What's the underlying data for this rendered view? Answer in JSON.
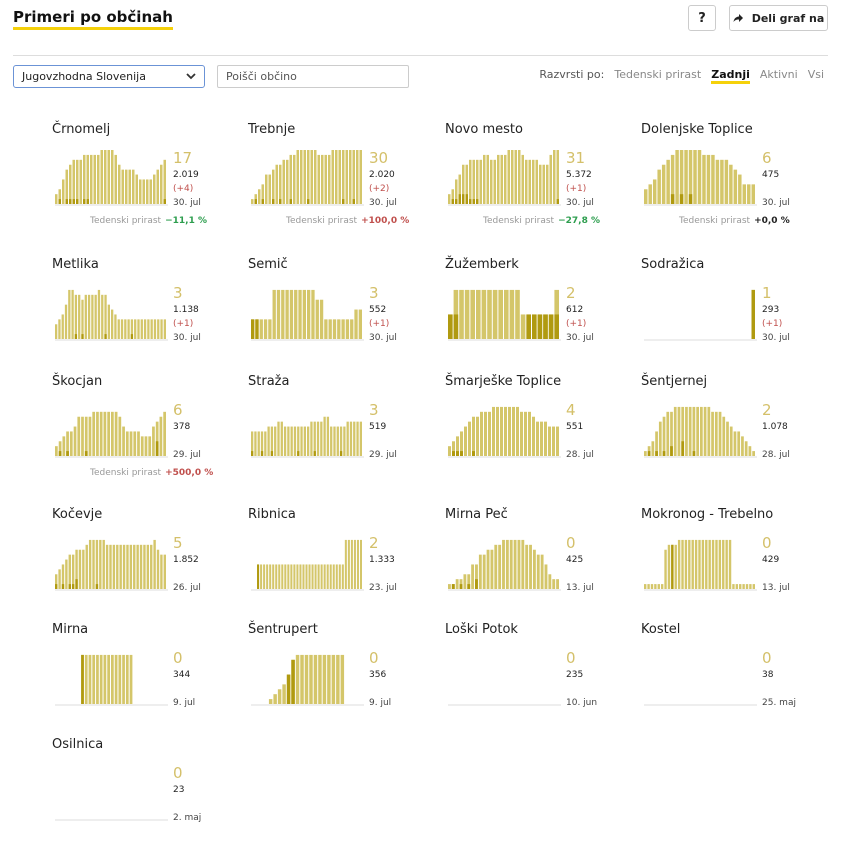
{
  "header": {
    "title": "Primeri po občinah",
    "help_label": "?",
    "share_label": "Deli graf na"
  },
  "filters": {
    "region": "Jugovzhodna Slovenija",
    "search_placeholder": "Poišči občino"
  },
  "sort": {
    "label": "Razvrsti po:",
    "options": [
      "Tedenski prirast",
      "Zadnji",
      "Aktivni",
      "Vsi"
    ],
    "active": "Zadnji"
  },
  "colors": {
    "accent": "#f5d10a",
    "bar": "#d4c66a",
    "bar_dark": "#b09a10",
    "positive": "#2e9e4f",
    "negative": "#c0504d"
  },
  "growth_label": "Tedenski prirast",
  "municipalities": [
    {
      "name": "Črnomelj",
      "total": "17",
      "population": "2.019",
      "change": "(+4)",
      "date": "30. jul",
      "growth": "−11,1 %",
      "growth_color": "green",
      "bars": [
        2,
        3,
        5,
        7,
        8,
        9,
        9,
        9,
        10,
        10,
        10,
        10,
        10,
        11,
        11,
        11,
        11,
        10,
        8,
        7,
        7,
        7,
        7,
        6,
        5,
        5,
        5,
        5,
        6,
        7,
        8,
        9
      ],
      "darks": [
        0,
        1,
        0,
        1,
        1,
        1,
        1,
        0,
        1,
        1,
        0,
        0,
        0,
        0,
        0,
        0,
        0,
        0,
        0,
        0,
        0,
        0,
        0,
        0,
        0,
        0,
        0,
        0,
        0,
        0,
        0,
        1
      ]
    },
    {
      "name": "Trebnje",
      "total": "30",
      "population": "2.020",
      "change": "(+2)",
      "date": "30. jul",
      "growth": "+100,0 %",
      "growth_color": "red",
      "bars": [
        1,
        2,
        3,
        4,
        6,
        6,
        7,
        8,
        8,
        9,
        9,
        10,
        10,
        11,
        11,
        11,
        11,
        11,
        11,
        10,
        10,
        10,
        10,
        11,
        11,
        11,
        11,
        11,
        11,
        11,
        11,
        11
      ],
      "darks": [
        0,
        1,
        0,
        1,
        0,
        0,
        1,
        0,
        1,
        0,
        0,
        1,
        0,
        0,
        0,
        0,
        1,
        0,
        0,
        0,
        0,
        0,
        0,
        0,
        0,
        0,
        1,
        0,
        0,
        1,
        0,
        0
      ]
    },
    {
      "name": "Novo mesto",
      "total": "31",
      "population": "5.372",
      "change": "(+1)",
      "date": "30. jul",
      "growth": "−27,8 %",
      "growth_color": "green",
      "bars": [
        2,
        3,
        5,
        6,
        8,
        8,
        9,
        9,
        9,
        9,
        10,
        10,
        9,
        9,
        10,
        10,
        10,
        11,
        11,
        11,
        11,
        10,
        9,
        9,
        9,
        9,
        8,
        8,
        8,
        10,
        11,
        11
      ],
      "darks": [
        0,
        1,
        1,
        2,
        2,
        2,
        1,
        1,
        1,
        0,
        0,
        0,
        0,
        0,
        0,
        0,
        0,
        0,
        0,
        0,
        0,
        0,
        0,
        0,
        0,
        0,
        0,
        0,
        0,
        0,
        0,
        1
      ]
    },
    {
      "name": "Dolenjske Toplice",
      "total": "6",
      "population": "475",
      "change": "",
      "date": "30. jul",
      "growth": "+0,0 %",
      "growth_color": "black",
      "bars": [
        3,
        4,
        5,
        7,
        8,
        9,
        10,
        11,
        11,
        11,
        11,
        11,
        11,
        10,
        10,
        10,
        9,
        9,
        9,
        8,
        7,
        6,
        4,
        4,
        4
      ],
      "darks": [
        0,
        0,
        0,
        0,
        0,
        0,
        2,
        0,
        2,
        0,
        2,
        0,
        0,
        0,
        0,
        0,
        0,
        0,
        0,
        0,
        0,
        0,
        0,
        0,
        0
      ]
    },
    {
      "name": "Metlika",
      "total": "3",
      "population": "1.138",
      "change": "(+1)",
      "date": "30. jul",
      "growth": "",
      "growth_color": "",
      "bars": [
        3,
        4,
        5,
        7,
        10,
        10,
        9,
        9,
        8,
        9,
        9,
        9,
        9,
        10,
        9,
        9,
        7,
        6,
        5,
        4,
        4,
        4,
        4,
        4,
        4,
        4,
        4,
        4,
        4,
        4,
        4,
        4,
        4,
        4
      ],
      "darks": [
        0,
        0,
        0,
        0,
        0,
        0,
        1,
        0,
        1,
        0,
        0,
        0,
        0,
        0,
        0,
        1,
        0,
        0,
        0,
        0,
        0,
        0,
        0,
        1,
        0,
        0,
        0,
        0,
        0,
        0,
        0,
        0,
        0,
        0
      ]
    },
    {
      "name": "Semič",
      "total": "3",
      "population": "552",
      "change": "(+1)",
      "date": "30. jul",
      "growth": "",
      "growth_color": "",
      "bars": [
        4,
        4,
        4,
        4,
        4,
        10,
        10,
        10,
        10,
        10,
        10,
        10,
        10,
        10,
        10,
        8,
        8,
        4,
        4,
        4,
        4,
        4,
        4,
        4,
        6,
        6
      ],
      "darks": [
        4,
        4,
        0,
        0,
        0,
        0,
        0,
        0,
        0,
        0,
        0,
        0,
        0,
        0,
        0,
        0,
        0,
        0,
        0,
        0,
        0,
        0,
        0,
        0,
        0,
        0
      ]
    },
    {
      "name": "Žužemberk",
      "total": "2",
      "population": "612",
      "change": "(+1)",
      "date": "30. jul",
      "growth": "",
      "growth_color": "",
      "bars": [
        5,
        10,
        10,
        10,
        10,
        10,
        10,
        10,
        10,
        10,
        10,
        10,
        10,
        5,
        5,
        5,
        5,
        5,
        5,
        10
      ],
      "darks": [
        5,
        5,
        0,
        0,
        0,
        0,
        0,
        0,
        0,
        0,
        0,
        0,
        0,
        0,
        5,
        5,
        5,
        5,
        5,
        5
      ]
    },
    {
      "name": "Sodražica",
      "total": "1",
      "population": "293",
      "change": "(+1)",
      "date": "30. jul",
      "growth": "",
      "growth_color": "",
      "bars": [
        0,
        0,
        0,
        0,
        0,
        0,
        0,
        0,
        0,
        0,
        0,
        0,
        0,
        0,
        0,
        0,
        0,
        0,
        0,
        0,
        0,
        0,
        0,
        0,
        10
      ],
      "darks": [
        0,
        0,
        0,
        0,
        0,
        0,
        0,
        0,
        0,
        0,
        0,
        0,
        0,
        0,
        0,
        0,
        0,
        0,
        0,
        0,
        0,
        0,
        0,
        0,
        10
      ]
    },
    {
      "name": "Škocjan",
      "total": "6",
      "population": "378",
      "change": "",
      "date": "29. jul",
      "growth": "+500,0 %",
      "growth_color": "red",
      "bars": [
        2,
        3,
        4,
        5,
        5,
        6,
        8,
        8,
        8,
        8,
        9,
        9,
        9,
        9,
        9,
        9,
        9,
        8,
        6,
        5,
        5,
        5,
        5,
        4,
        4,
        4,
        6,
        7,
        8,
        9
      ],
      "darks": [
        0,
        1,
        0,
        1,
        0,
        0,
        0,
        0,
        1,
        0,
        0,
        0,
        0,
        0,
        0,
        0,
        0,
        0,
        0,
        0,
        0,
        0,
        0,
        0,
        0,
        0,
        0,
        3,
        0,
        0
      ]
    },
    {
      "name": "Straža",
      "total": "3",
      "population": "519",
      "change": "",
      "date": "29. jul",
      "growth": "",
      "growth_color": "",
      "bars": [
        5,
        5,
        5,
        5,
        5,
        6,
        6,
        6,
        7,
        7,
        6,
        6,
        6,
        6,
        6,
        6,
        6,
        6,
        7,
        7,
        7,
        7,
        8,
        8,
        6,
        6,
        6,
        6,
        6,
        7,
        7,
        7,
        7,
        7
      ],
      "darks": [
        1,
        0,
        0,
        1,
        0,
        0,
        1,
        0,
        0,
        0,
        0,
        0,
        0,
        0,
        1,
        0,
        0,
        0,
        0,
        1,
        0,
        0,
        0,
        0,
        0,
        0,
        0,
        1,
        0,
        0,
        0,
        0,
        0,
        0
      ]
    },
    {
      "name": "Šmarješke Toplice",
      "total": "4",
      "population": "551",
      "change": "",
      "date": "28. jul",
      "growth": "",
      "growth_color": "",
      "bars": [
        2,
        3,
        4,
        5,
        6,
        7,
        8,
        8,
        9,
        9,
        9,
        10,
        10,
        10,
        10,
        10,
        10,
        10,
        9,
        9,
        9,
        8,
        7,
        7,
        7,
        6,
        6,
        6
      ],
      "darks": [
        0,
        1,
        1,
        1,
        0,
        0,
        1,
        0,
        0,
        0,
        0,
        0,
        0,
        0,
        0,
        0,
        0,
        0,
        0,
        0,
        0,
        0,
        0,
        0,
        0,
        0,
        0,
        0
      ]
    },
    {
      "name": "Šentjernej",
      "total": "2",
      "population": "1.078",
      "change": "",
      "date": "28. jul",
      "growth": "",
      "growth_color": "",
      "bars": [
        1,
        2,
        3,
        5,
        7,
        8,
        9,
        9,
        10,
        10,
        10,
        10,
        10,
        10,
        10,
        10,
        10,
        10,
        9,
        9,
        9,
        8,
        7,
        6,
        5,
        5,
        4,
        3,
        2,
        1
      ],
      "darks": [
        0,
        1,
        0,
        1,
        0,
        1,
        0,
        2,
        0,
        0,
        3,
        0,
        0,
        1,
        0,
        0,
        0,
        0,
        0,
        0,
        0,
        0,
        0,
        0,
        0,
        0,
        0,
        0,
        0,
        0
      ]
    },
    {
      "name": "Kočevje",
      "total": "5",
      "population": "1.852",
      "change": "",
      "date": "26. jul",
      "growth": "",
      "growth_color": "",
      "bars": [
        3,
        4,
        5,
        6,
        7,
        7,
        8,
        8,
        8,
        9,
        10,
        10,
        10,
        10,
        10,
        9,
        9,
        9,
        9,
        9,
        9,
        9,
        9,
        9,
        9,
        9,
        9,
        9,
        9,
        10,
        8,
        7,
        7
      ],
      "darks": [
        1,
        0,
        1,
        0,
        1,
        1,
        2,
        0,
        0,
        0,
        0,
        0,
        1,
        0,
        0,
        0,
        0,
        0,
        0,
        0,
        0,
        0,
        0,
        0,
        0,
        0,
        0,
        0,
        0,
        0,
        0,
        0,
        0
      ]
    },
    {
      "name": "Ribnica",
      "total": "2",
      "population": "1.333",
      "change": "",
      "date": "23. jul",
      "growth": "",
      "growth_color": "",
      "bars": [
        0,
        0,
        5,
        5,
        5,
        5,
        5,
        5,
        5,
        5,
        5,
        5,
        5,
        5,
        5,
        5,
        5,
        5,
        5,
        5,
        5,
        5,
        5,
        5,
        5,
        5,
        5,
        5,
        5,
        5,
        5,
        10,
        10,
        10,
        10,
        10,
        10
      ],
      "darks": [
        0,
        0,
        5,
        0,
        0,
        0,
        0,
        0,
        0,
        0,
        0,
        0,
        0,
        0,
        0,
        0,
        0,
        0,
        0,
        0,
        0,
        0,
        0,
        0,
        0,
        0,
        0,
        0,
        0,
        0,
        0,
        0,
        0,
        0,
        0,
        0,
        0
      ]
    },
    {
      "name": "Mirna Peč",
      "total": "0",
      "population": "425",
      "change": "",
      "date": "13. jul",
      "growth": "",
      "growth_color": "",
      "bars": [
        1,
        1,
        2,
        2,
        3,
        3,
        5,
        5,
        7,
        7,
        8,
        8,
        9,
        9,
        10,
        10,
        10,
        10,
        10,
        10,
        9,
        9,
        8,
        7,
        7,
        5,
        3,
        2,
        2
      ],
      "darks": [
        0,
        1,
        0,
        1,
        0,
        1,
        0,
        2,
        0,
        0,
        0,
        0,
        0,
        0,
        0,
        0,
        0,
        0,
        0,
        0,
        0,
        0,
        0,
        0,
        0,
        0,
        0,
        0,
        0
      ]
    },
    {
      "name": "Mokronog - Trebelno",
      "total": "0",
      "population": "429",
      "change": "",
      "date": "13. jul",
      "growth": "",
      "growth_color": "",
      "bars": [
        1,
        1,
        1,
        1,
        1,
        1,
        8,
        9,
        9,
        9,
        10,
        10,
        10,
        10,
        10,
        10,
        10,
        10,
        10,
        10,
        10,
        10,
        10,
        10,
        10,
        10,
        1,
        1,
        1,
        1,
        1,
        1,
        1
      ],
      "darks": [
        0,
        0,
        0,
        0,
        0,
        0,
        0,
        0,
        9,
        0,
        0,
        0,
        0,
        0,
        0,
        0,
        0,
        0,
        0,
        0,
        0,
        0,
        0,
        0,
        0,
        0,
        0,
        0,
        0,
        0,
        0,
        0,
        0
      ]
    },
    {
      "name": "Mirna",
      "total": "0",
      "population": "344",
      "change": "",
      "date": "9. jul",
      "growth": "",
      "growth_color": "",
      "bars": [
        0,
        0,
        0,
        0,
        0,
        0,
        0,
        10,
        10,
        10,
        10,
        10,
        10,
        10,
        10,
        10,
        10,
        10,
        10,
        10,
        10,
        0,
        0,
        0,
        0,
        0,
        0,
        0,
        0,
        0
      ],
      "darks": [
        0,
        0,
        0,
        0,
        0,
        0,
        0,
        10,
        0,
        0,
        0,
        0,
        0,
        0,
        0,
        0,
        0,
        0,
        0,
        0,
        0,
        0,
        0,
        0,
        0,
        0,
        0,
        0,
        0,
        0
      ]
    },
    {
      "name": "Šentrupert",
      "total": "0",
      "population": "356",
      "change": "",
      "date": "9. jul",
      "growth": "",
      "growth_color": "",
      "bars": [
        0,
        0,
        0,
        0,
        1,
        2,
        3,
        4,
        6,
        9,
        10,
        10,
        10,
        10,
        10,
        10,
        10,
        10,
        10,
        10,
        10,
        0,
        0,
        0,
        0
      ],
      "darks": [
        0,
        0,
        0,
        0,
        0,
        0,
        0,
        0,
        6,
        9,
        0,
        0,
        0,
        0,
        0,
        0,
        0,
        0,
        0,
        0,
        0,
        0,
        0,
        0,
        0
      ]
    },
    {
      "name": "Loški Potok",
      "total": "0",
      "population": "235",
      "change": "",
      "date": "10. jun",
      "growth": "",
      "growth_color": "",
      "bars": [],
      "darks": []
    },
    {
      "name": "Kostel",
      "total": "0",
      "population": "38",
      "change": "",
      "date": "25. maj",
      "growth": "",
      "growth_color": "",
      "bars": [],
      "darks": []
    },
    {
      "name": "Osilnica",
      "total": "0",
      "population": "23",
      "change": "",
      "date": "2. maj",
      "growth": "",
      "growth_color": "",
      "bars": [],
      "darks": []
    }
  ]
}
